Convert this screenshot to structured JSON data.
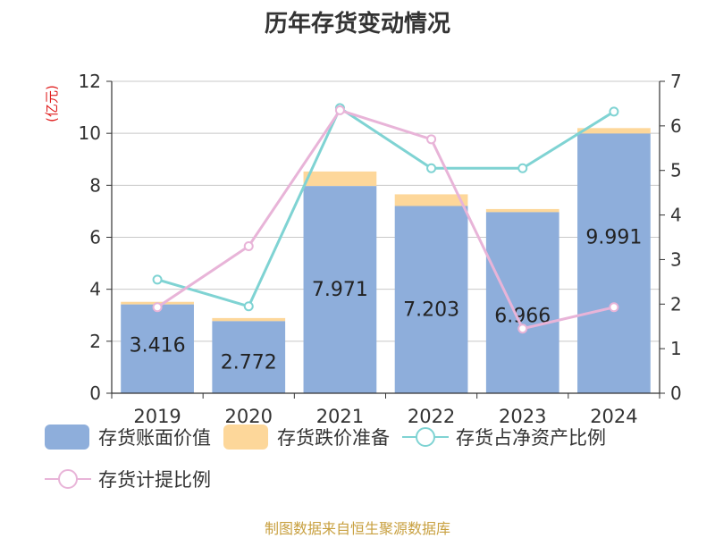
{
  "title": "历年存货变动情况",
  "source": "制图数据来自恒生聚源数据库",
  "chart_data": {
    "type": "bar",
    "stacked": true,
    "categories": [
      "2019",
      "2020",
      "2021",
      "2022",
      "2023",
      "2024"
    ],
    "ylabel_left": "(亿元)",
    "ylim_left": [
      0,
      12
    ],
    "yticks_left": [
      0,
      2,
      4,
      6,
      8,
      10,
      12
    ],
    "ylim_right": [
      0,
      7
    ],
    "yticks_right": [
      0,
      1,
      2,
      3,
      4,
      5,
      6,
      7
    ],
    "grid": true,
    "legend_position": "bottom",
    "series": [
      {
        "name": "存货账面价值",
        "type": "bar",
        "axis": "left",
        "color": "#8eaedb",
        "values": [
          3.416,
          2.772,
          7.971,
          7.203,
          6.966,
          9.991
        ],
        "labels": [
          "3.416",
          "2.772",
          "7.971",
          "7.203",
          "6.966",
          "9.991"
        ]
      },
      {
        "name": "存货跌价准备",
        "type": "bar",
        "axis": "left",
        "color": "#fdd79a",
        "values": [
          0.1,
          0.12,
          0.56,
          0.45,
          0.12,
          0.21
        ]
      },
      {
        "name": "存货占净资产比例",
        "type": "line",
        "axis": "right",
        "color": "#7fd3d3",
        "values": [
          2.55,
          1.95,
          6.4,
          5.05,
          5.05,
          6.32
        ]
      },
      {
        "name": "存货计提比例",
        "type": "line",
        "axis": "right",
        "color": "#e8b4d8",
        "values": [
          1.93,
          3.3,
          6.35,
          5.7,
          1.45,
          1.93
        ]
      }
    ]
  }
}
